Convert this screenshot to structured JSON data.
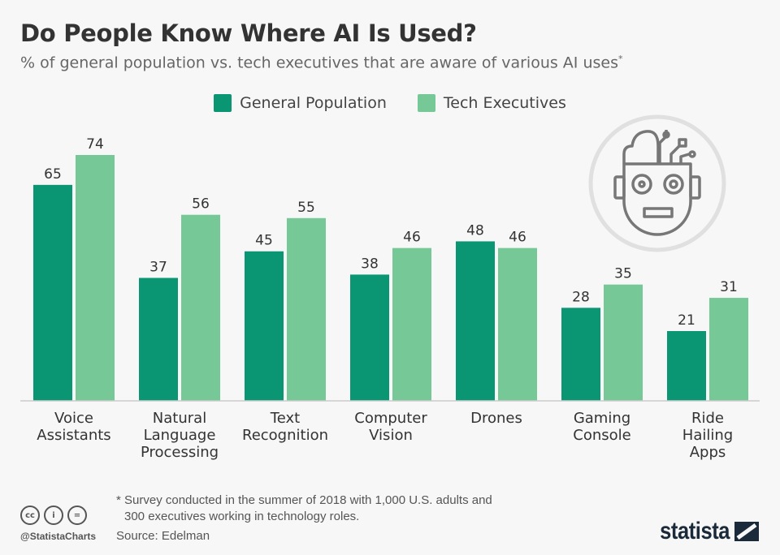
{
  "title": "Do People Know Where AI Is Used?",
  "subtitle": "% of general population vs. tech executives that are aware of various AI uses",
  "subtitle_mark": "*",
  "colors": {
    "general_population": "#0a9672",
    "tech_executives": "#76c897",
    "axis": "#cccccc"
  },
  "illustration": "robot-head-icon",
  "chart_data": {
    "type": "bar",
    "title": "Do People Know Where AI Is Used?",
    "categories": [
      [
        "Voice",
        "Assistants"
      ],
      [
        "Natural",
        "Language",
        "Processing"
      ],
      [
        "Text",
        "Recognition"
      ],
      [
        "Computer",
        "Vision"
      ],
      [
        "Drones"
      ],
      [
        "Gaming",
        "Console"
      ],
      [
        "Ride",
        "Hailing",
        "Apps"
      ]
    ],
    "series": [
      {
        "name": "General Population",
        "values": [
          65,
          37,
          45,
          38,
          48,
          28,
          21
        ]
      },
      {
        "name": "Tech Executives",
        "values": [
          74,
          56,
          55,
          46,
          46,
          35,
          31
        ]
      }
    ],
    "ylim": [
      0,
      80
    ],
    "grid": false,
    "legend": "top-center",
    "data_labels": true
  },
  "footer": {
    "note_line1": "* Survey conducted in the summer of 2018 with 1,000 U.S. adults and",
    "note_line2": "300 executives working in technology roles.",
    "source": "Source: Edelman",
    "handle": "@StatistaCharts",
    "license_icons": [
      "cc",
      "i",
      "="
    ],
    "brand": "statista"
  }
}
